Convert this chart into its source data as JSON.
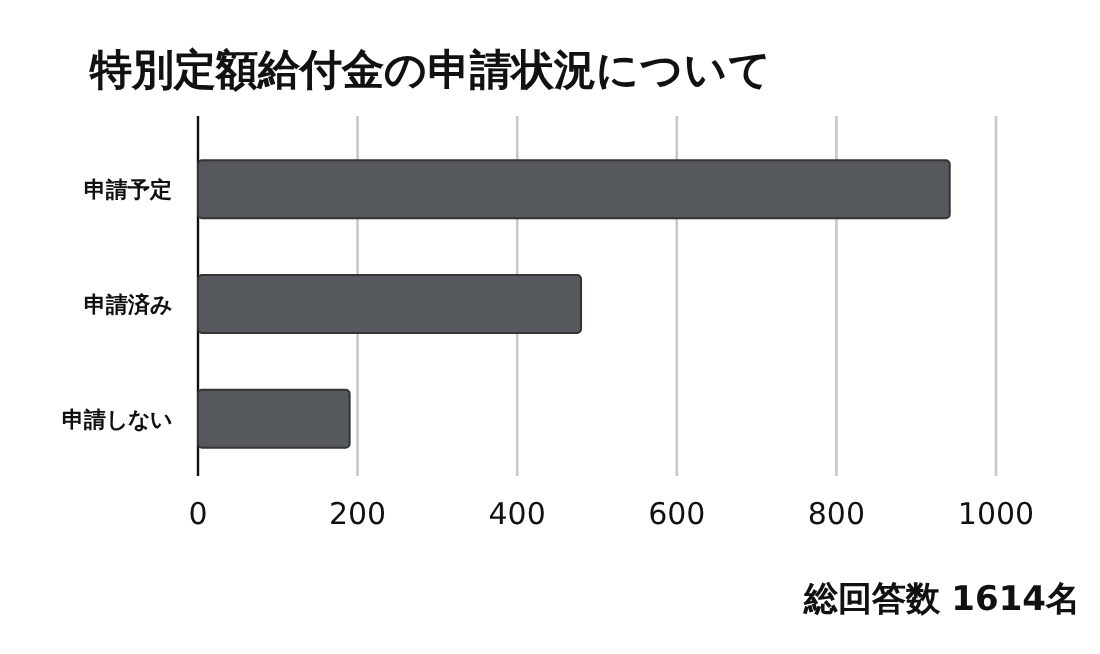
{
  "chart_data": {
    "type": "bar",
    "orientation": "horizontal",
    "title": "特別定額給付金の申請状況について",
    "categories": [
      "申請予定",
      "申請済み",
      "申請しない"
    ],
    "values": [
      942,
      480,
      190
    ],
    "color": "#55585d",
    "xlim": [
      0,
      1000
    ],
    "xticks": [
      0,
      200,
      400,
      600,
      800,
      1000
    ],
    "grid": "x",
    "annotations": [
      "総回答数 1614名"
    ]
  }
}
